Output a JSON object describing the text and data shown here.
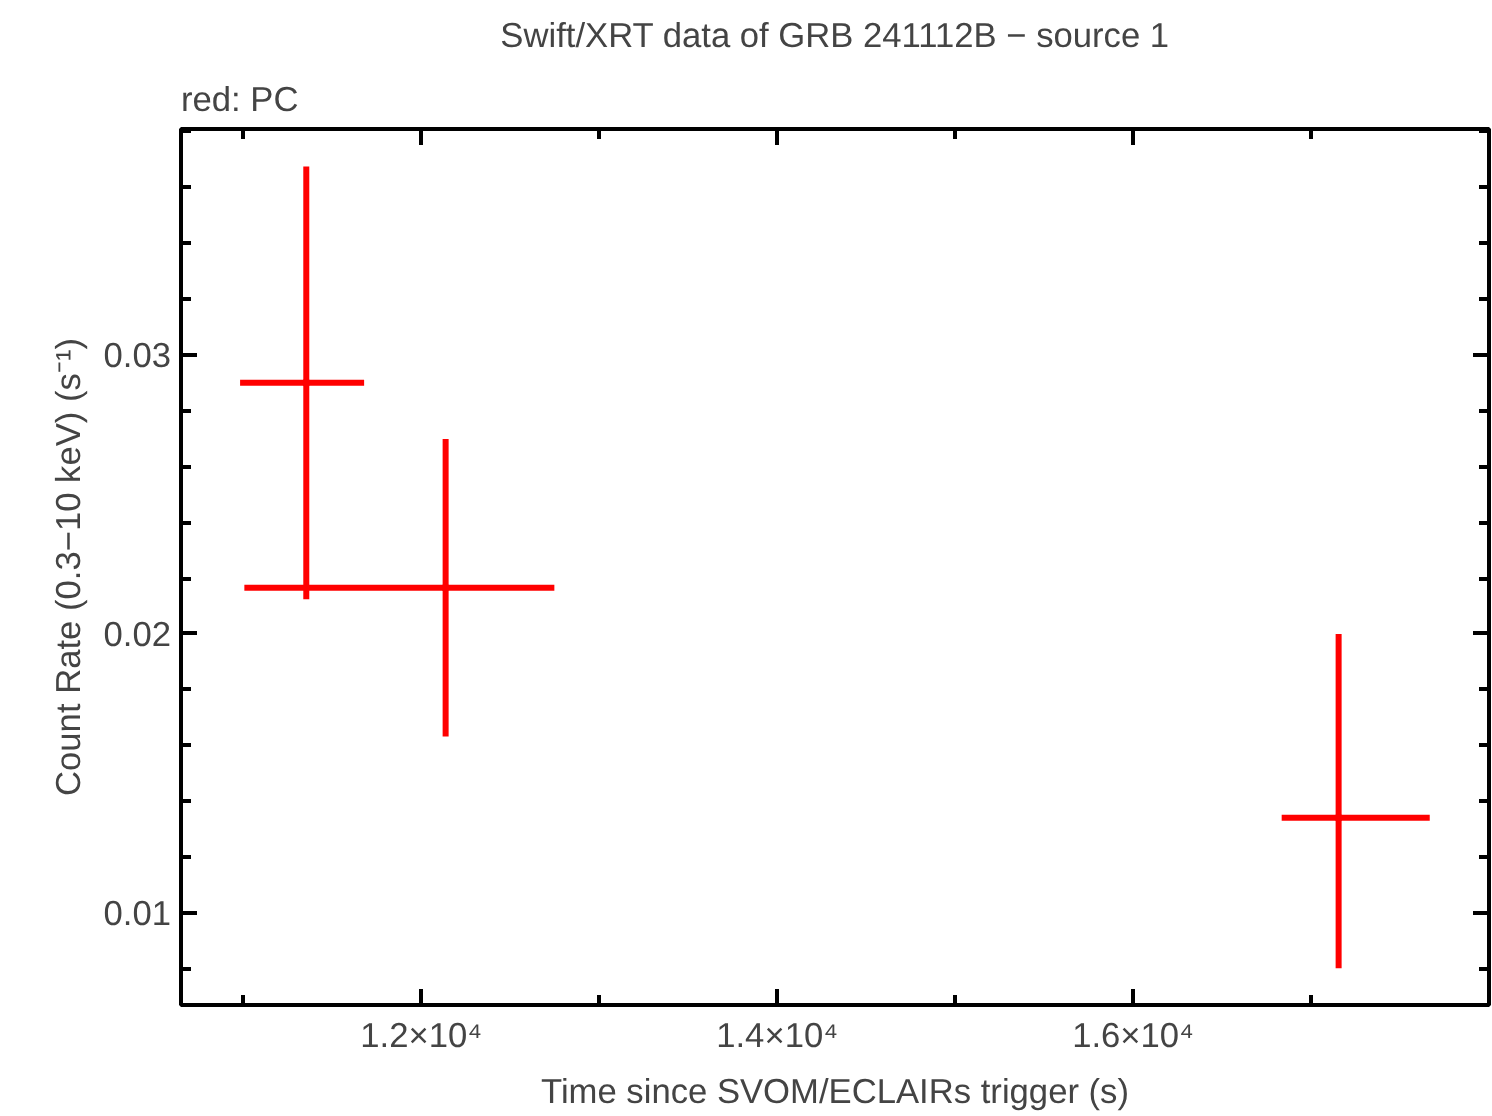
{
  "chart_data": {
    "type": "scatter",
    "title": "Swift/XRT data of GRB 241112B − source 1",
    "subtitle": "red: PC",
    "xlabel": "Time since SVOM/ECLAIRs trigger (s)",
    "ylabel": "Count Rate (0.3−10 keV) (s⁻¹)",
    "x": [
      11354,
      12137,
      17155
    ],
    "series": [
      {
        "color": "#ff0000",
        "values": [
          0.029,
          0.02166,
          0.01341
        ],
        "xerrors": [
          [
            10982,
            11679
          ],
          [
            11006,
            12748
          ],
          [
            16835,
            17667
          ]
        ],
        "errors": [
          [
            0.02124,
            0.03676
          ],
          [
            0.01632,
            0.02699
          ],
          [
            0.00802,
            0.02
          ]
        ]
      }
    ],
    "marker": "none",
    "grid": false,
    "xlim": [
      10650,
      18000
    ],
    "ylim": [
      0.0067,
      0.0381
    ],
    "xticks": [
      {
        "value": 11000,
        "label": null
      },
      {
        "value": 12000,
        "label": "1.2×10⁴"
      },
      {
        "value": 13000,
        "label": null
      },
      {
        "value": 14000,
        "label": "1.4×10⁴"
      },
      {
        "value": 15000,
        "label": null
      },
      {
        "value": 16000,
        "label": "1.6×10⁴"
      },
      {
        "value": 17000,
        "label": null
      }
    ],
    "yticks": [
      {
        "value": 0.008,
        "label": null
      },
      0.01,
      {
        "value": 0.012,
        "label": null
      },
      {
        "value": 0.014,
        "label": null
      },
      {
        "value": 0.016,
        "label": null
      },
      {
        "value": 0.018,
        "label": null
      },
      0.02,
      {
        "value": 0.022,
        "label": null
      },
      {
        "value": 0.024,
        "label": null
      },
      {
        "value": 0.026,
        "label": null
      },
      {
        "value": 0.028,
        "label": null
      },
      0.03,
      {
        "value": 0.032,
        "label": null
      },
      {
        "value": 0.034,
        "label": null
      },
      {
        "value": 0.036,
        "label": null
      },
      {
        "value": 0.038,
        "label": null
      }
    ]
  }
}
